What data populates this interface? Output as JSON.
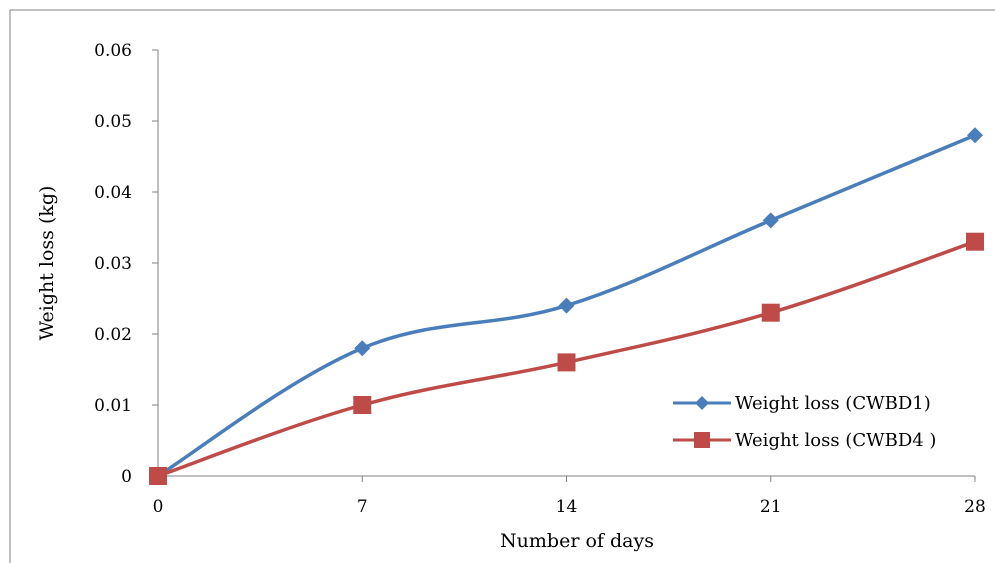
{
  "chart_data": {
    "type": "line",
    "title": "",
    "xlabel": "Number of days",
    "ylabel": "Weight loss (kg)",
    "x": [
      0,
      7,
      14,
      21,
      28
    ],
    "x_tick_labels": [
      "0",
      "7",
      "14",
      "21",
      "28"
    ],
    "y_tick_labels": [
      "0",
      "0.01",
      "0.02",
      "0.03",
      "0.04",
      "0.05",
      "0.06"
    ],
    "y_ticks": [
      0,
      0.01,
      0.02,
      0.03,
      0.04,
      0.05,
      0.06
    ],
    "xlim": [
      0,
      28
    ],
    "ylim": [
      0,
      0.06
    ],
    "grid": false,
    "smooth": true,
    "legend_position": "right",
    "series": [
      {
        "name": "Weight loss (CWBD1)",
        "values": [
          0,
          0.018,
          0.024,
          0.036,
          0.048
        ],
        "color": "#4a7ebb",
        "marker": "diamond"
      },
      {
        "name": "Weight loss (CWBD4 )",
        "values": [
          0,
          0.01,
          0.016,
          0.023,
          0.033
        ],
        "color": "#be4b48",
        "marker": "square"
      }
    ]
  }
}
